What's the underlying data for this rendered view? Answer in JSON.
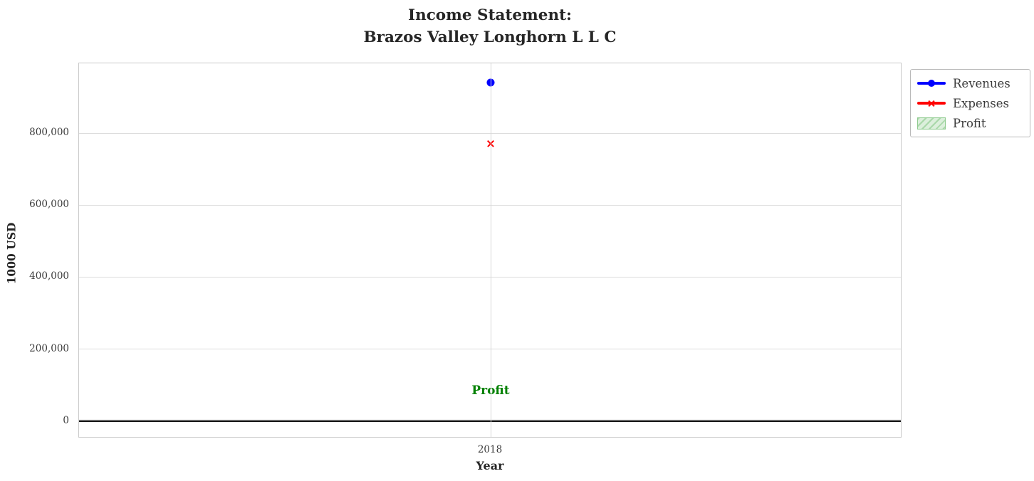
{
  "title": {
    "line1": "Income Statement:",
    "line2": "Brazos Valley Longhorn L L C"
  },
  "chart_data": {
    "type": "line",
    "x": [
      2018
    ],
    "xtick_labels": [
      "2018"
    ],
    "series": [
      {
        "name": "Revenues",
        "values": [
          940000
        ],
        "color": "#0000ff",
        "marker": "circle"
      },
      {
        "name": "Expenses",
        "values": [
          770000
        ],
        "color": "#ff0000",
        "marker": "x"
      }
    ],
    "profit_patch": {
      "label": "Profit",
      "fill": "#dcefdc",
      "hatch": "#a9d8a9",
      "edge": "#8fcb8f"
    },
    "annotation": {
      "text": "Profit",
      "x": 2018,
      "y": 85000,
      "color": "#008000"
    },
    "xlabel": "Year",
    "ylabel": "1000 USD",
    "yticks": [
      0,
      200000,
      400000,
      600000,
      800000
    ],
    "ytick_labels": [
      "0",
      "200,000",
      "400,000",
      "600,000",
      "800,000"
    ],
    "ylim": [
      -48000,
      994000
    ],
    "grid": true,
    "zero_line_color": "#000000",
    "legend_position": "upper right, outside plot"
  },
  "legend": {
    "items": [
      {
        "label": "Revenues",
        "swatch": "line-circle"
      },
      {
        "label": "Expenses",
        "swatch": "line-x"
      },
      {
        "label": "Profit",
        "swatch": "hatched-patch"
      }
    ]
  }
}
